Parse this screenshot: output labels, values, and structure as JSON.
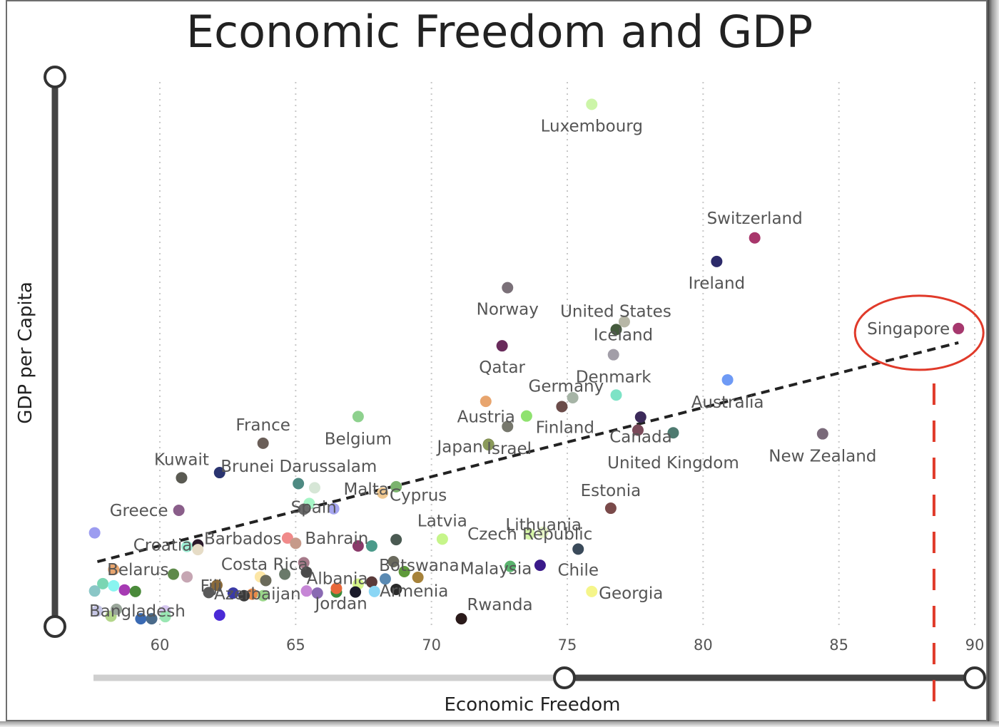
{
  "chart_data": {
    "type": "scatter",
    "title": "Economic Freedom and GDP",
    "xlabel": "Economic Freedom",
    "ylabel": "GDP per Capita",
    "xlim": [
      57.5,
      90.3
    ],
    "x_ticks": [
      60,
      65,
      70,
      75,
      80,
      85,
      90
    ],
    "y_ticks": [],
    "grid": "vertical dotted",
    "trendline": {
      "style": "dashed",
      "x": [
        57.7,
        89.4
      ],
      "y": [
        11.7,
        53.5
      ]
    },
    "highlight": {
      "label": "Singapore",
      "marker": "circle",
      "reference_x": 88.5
    },
    "slider_x_range": [
      75,
      90
    ],
    "points": [
      {
        "label": "Luxembourg",
        "x": 75.9,
        "y": 99.0,
        "color": "#ccf5a8"
      },
      {
        "label": "Switzerland",
        "x": 81.9,
        "y": 73.5,
        "color": "#a8366b"
      },
      {
        "label": "Ireland",
        "x": 80.5,
        "y": 69.0,
        "color": "#2c2a6a"
      },
      {
        "label": "Norway",
        "x": 72.8,
        "y": 64.0,
        "color": "#7a7078"
      },
      {
        "label": "United States",
        "x": 77.1,
        "y": 57.5,
        "color": "#b7b7a6"
      },
      {
        "label": "Iceland",
        "x": 76.8,
        "y": 56.0,
        "color": "#445a3c"
      },
      {
        "label": "Singapore",
        "x": 89.4,
        "y": 56.2,
        "color": "#a6386e"
      },
      {
        "label": "Qatar",
        "x": 72.6,
        "y": 52.9,
        "color": "#692b5b"
      },
      {
        "label": "Denmark",
        "x": 76.7,
        "y": 51.2,
        "color": "#a29ea8"
      },
      {
        "label": "Australia",
        "x": 80.9,
        "y": 46.4,
        "color": "#6e9af5"
      },
      {
        "label": "",
        "x": 76.8,
        "y": 43.5,
        "color": "#7de3c6"
      },
      {
        "label": "",
        "x": 72.0,
        "y": 42.3,
        "color": "#e8a56e"
      },
      {
        "label": "",
        "x": 75.2,
        "y": 43.0,
        "color": "#a6b4a6"
      },
      {
        "label": "Germany",
        "x": 74.8,
        "y": 41.3,
        "color": "#6b4c4a"
      },
      {
        "label": "Finland",
        "x": 73.5,
        "y": 39.5,
        "color": "#8fe26f"
      },
      {
        "label": "Austria",
        "x": 72.8,
        "y": 37.5,
        "color": "#76776c"
      },
      {
        "label": "",
        "x": 77.7,
        "y": 39.3,
        "color": "#3c2a5a"
      },
      {
        "label": "Canada",
        "x": 77.6,
        "y": 36.8,
        "color": "#7a4a5a"
      },
      {
        "label": "United Kingdom",
        "x": 78.9,
        "y": 36.3,
        "color": "#4e7a70"
      },
      {
        "label": "New Zealand",
        "x": 84.4,
        "y": 36.1,
        "color": "#7a6a7a"
      },
      {
        "label": "Belgium",
        "x": 67.3,
        "y": 39.4,
        "color": "#8ed18e"
      },
      {
        "label": "France",
        "x": 63.8,
        "y": 34.3,
        "color": "#6a5e58"
      },
      {
        "label": "Japan",
        "x": 72.1,
        "y": 34.1,
        "color": "#6e7a3a"
      },
      {
        "label": "Israel",
        "x": 72.1,
        "y": 34.0,
        "color": "#8a9a5a"
      },
      {
        "label": "Kuwait",
        "x": 60.8,
        "y": 27.7,
        "color": "#5a5a52"
      },
      {
        "label": "Brunei Darussalam",
        "x": 62.2,
        "y": 28.7,
        "color": "#2a3470"
      },
      {
        "label": "",
        "x": 65.1,
        "y": 26.6,
        "color": "#4e8a82"
      },
      {
        "label": "",
        "x": 65.7,
        "y": 25.8,
        "color": "#d6e6d6"
      },
      {
        "label": "Malta",
        "x": 68.7,
        "y": 26.0,
        "color": "#7bb36e"
      },
      {
        "label": "Cyprus",
        "x": 68.2,
        "y": 24.8,
        "color": "#f0c890"
      },
      {
        "label": "",
        "x": 65.5,
        "y": 22.8,
        "color": "#a6f5c6"
      },
      {
        "label": "Spain",
        "x": 65.3,
        "y": 21.7,
        "color": "#6a6a6a"
      },
      {
        "label": "",
        "x": 66.4,
        "y": 21.8,
        "color": "#a6a6f0"
      },
      {
        "label": "Greece",
        "x": 60.7,
        "y": 21.5,
        "color": "#8a5e8a"
      },
      {
        "label": "",
        "x": 57.6,
        "y": 17.2,
        "color": "#9c9cf0"
      },
      {
        "label": "Lithuania",
        "x": 73.6,
        "y": 17.0,
        "color": "#d6f5a8"
      },
      {
        "label": "Estonia",
        "x": 76.6,
        "y": 21.9,
        "color": "#7a4a4a"
      },
      {
        "label": "Czech Republic",
        "x": 74.1,
        "y": 17.3,
        "color": "#e6f5c6"
      },
      {
        "label": "Latvia",
        "x": 70.4,
        "y": 16.0,
        "color": "#c6f58a"
      },
      {
        "label": "Croatia",
        "x": 61.0,
        "y": 14.6,
        "color": "#9ef0d6"
      },
      {
        "label": "Barbados",
        "x": 61.4,
        "y": 14.9,
        "color": "#2a1a2a"
      },
      {
        "label": "",
        "x": 61.4,
        "y": 14.0,
        "color": "#e6dcc6"
      },
      {
        "label": "",
        "x": 64.7,
        "y": 16.2,
        "color": "#f08a8a"
      },
      {
        "label": "",
        "x": 65.0,
        "y": 15.2,
        "color": "#c69a8a"
      },
      {
        "label": "Bahrain",
        "x": 67.3,
        "y": 14.7,
        "color": "#8a3a6a"
      },
      {
        "label": "",
        "x": 67.8,
        "y": 14.7,
        "color": "#4a9a8a"
      },
      {
        "label": "",
        "x": 68.7,
        "y": 15.9,
        "color": "#4a5a52"
      },
      {
        "label": "Chile",
        "x": 75.4,
        "y": 14.1,
        "color": "#3a4a5a"
      },
      {
        "label": "Costa Rica",
        "x": 65.3,
        "y": 11.5,
        "color": "#a67a8a"
      },
      {
        "label": "Botswana",
        "x": 68.6,
        "y": 11.7,
        "color": "#6a6a5e"
      },
      {
        "label": "Malaysia",
        "x": 72.9,
        "y": 10.8,
        "color": "#5ab36e"
      },
      {
        "label": "",
        "x": 74.0,
        "y": 11.0,
        "color": "#3a1a8a"
      },
      {
        "label": "Belarus",
        "x": 58.3,
        "y": 10.2,
        "color": "#e8a56e"
      },
      {
        "label": "",
        "x": 60.5,
        "y": 9.3,
        "color": "#5e8a4a"
      },
      {
        "label": "",
        "x": 61.0,
        "y": 8.8,
        "color": "#c6a6b3"
      },
      {
        "label": "Albania",
        "x": 65.4,
        "y": 9.7,
        "color": "#4a4a4a"
      },
      {
        "label": "",
        "x": 64.6,
        "y": 9.3,
        "color": "#6a7a6a"
      },
      {
        "label": "",
        "x": 63.7,
        "y": 8.8,
        "color": "#fce6a6"
      },
      {
        "label": "",
        "x": 63.9,
        "y": 8.1,
        "color": "#6a6a5a"
      },
      {
        "label": "",
        "x": 69.0,
        "y": 9.8,
        "color": "#5e9a3a"
      },
      {
        "label": "",
        "x": 69.5,
        "y": 8.7,
        "color": "#a6823a"
      },
      {
        "label": "",
        "x": 68.3,
        "y": 8.4,
        "color": "#5a8ab3"
      },
      {
        "label": "",
        "x": 67.8,
        "y": 7.8,
        "color": "#5a3a3a"
      },
      {
        "label": "",
        "x": 67.3,
        "y": 7.4,
        "color": "#d6f58a"
      },
      {
        "label": "Fiji",
        "x": 62.1,
        "y": 7.2,
        "color": "#8a6a3a"
      },
      {
        "label": "Azerbaijan",
        "x": 62.7,
        "y": 5.7,
        "color": "#3a3aa6"
      },
      {
        "label": "",
        "x": 63.4,
        "y": 5.5,
        "color": "#e88a4a"
      },
      {
        "label": "",
        "x": 63.1,
        "y": 5.2,
        "color": "#3a3a3a"
      },
      {
        "label": "",
        "x": 63.8,
        "y": 5.2,
        "color": "#9ad68a"
      },
      {
        "label": "",
        "x": 65.4,
        "y": 6.1,
        "color": "#c686d6"
      },
      {
        "label": "",
        "x": 65.8,
        "y": 5.7,
        "color": "#8a6ab3"
      },
      {
        "label": "",
        "x": 66.5,
        "y": 5.9,
        "color": "#3a8a3a"
      },
      {
        "label": "",
        "x": 66.5,
        "y": 6.6,
        "color": "#e8683a"
      },
      {
        "label": "Jordan",
        "x": 67.2,
        "y": 5.9,
        "color": "#1a1a2a"
      },
      {
        "label": "",
        "x": 67.9,
        "y": 6.0,
        "color": "#8ad6f5"
      },
      {
        "label": "Armenia",
        "x": 68.7,
        "y": 6.4,
        "color": "#2a2a2a"
      },
      {
        "label": "Rwanda",
        "x": 71.1,
        "y": 0.8,
        "color": "#2a1a1a"
      },
      {
        "label": "Georgia",
        "x": 75.9,
        "y": 6.0,
        "color": "#f5f58a"
      },
      {
        "label": "",
        "x": 57.9,
        "y": 7.5,
        "color": "#7ad6b3"
      },
      {
        "label": "",
        "x": 58.3,
        "y": 7.1,
        "color": "#8af5f0"
      },
      {
        "label": "",
        "x": 58.7,
        "y": 6.3,
        "color": "#a63ab3"
      },
      {
        "label": "",
        "x": 59.1,
        "y": 6.0,
        "color": "#4a8a3a"
      },
      {
        "label": "",
        "x": 57.6,
        "y": 6.1,
        "color": "#8ac6c6"
      },
      {
        "label": "Bangladesh",
        "x": 57.7,
        "y": 2.3,
        "color": "#c6c6e6"
      },
      {
        "label": "",
        "x": 58.2,
        "y": 1.3,
        "color": "#b3d68a"
      },
      {
        "label": "",
        "x": 58.4,
        "y": 2.6,
        "color": "#9aa69a"
      },
      {
        "label": "",
        "x": 59.3,
        "y": 0.8,
        "color": "#3a6ab3"
      },
      {
        "label": "",
        "x": 59.7,
        "y": 0.8,
        "color": "#4a6a8a"
      },
      {
        "label": "",
        "x": 60.2,
        "y": 2.3,
        "color": "#d6c6f0"
      },
      {
        "label": "",
        "x": 60.2,
        "y": 1.2,
        "color": "#9ae6b3"
      },
      {
        "label": "",
        "x": 61.8,
        "y": 5.8,
        "color": "#5a5a5a"
      },
      {
        "label": "",
        "x": 62.2,
        "y": 1.5,
        "color": "#4a2ad6"
      }
    ]
  }
}
